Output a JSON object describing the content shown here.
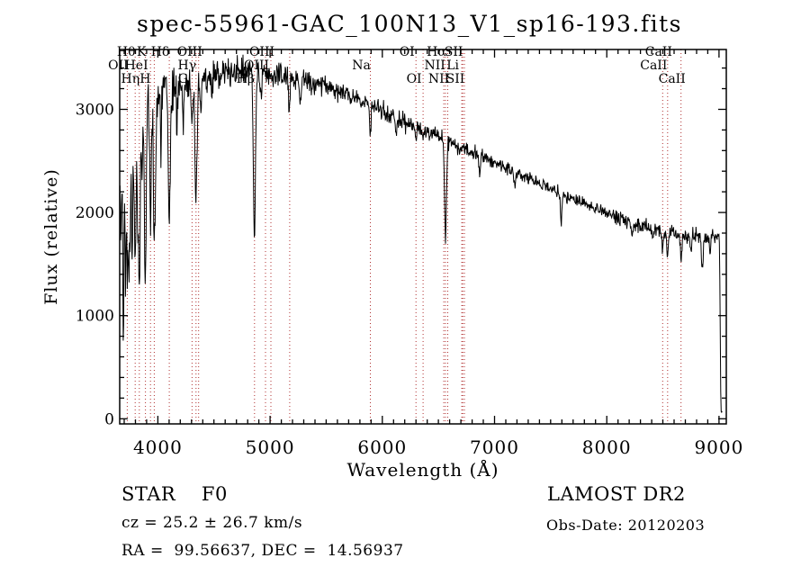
{
  "title": "spec-55961-GAC_100N13_V1_sp16-193.fits",
  "footer": {
    "class_label": "STAR    F0",
    "cz": "cz = 25.2 ± 26.7 km/s",
    "ra_dec": "RA =  99.56637, DEC =  14.56937",
    "survey": "LAMOST DR2",
    "obs_date": "Obs-Date: 20120203"
  },
  "chart_data": {
    "type": "line",
    "title": "spec-55961-GAC_100N13_V1_sp16-193.fits",
    "xlabel": "Wavelength (Å)",
    "ylabel": "Flux (relative)",
    "xlim": [
      3660,
      9065
    ],
    "ylim": [
      -50,
      3580
    ],
    "x_major_ticks": [
      4000,
      5000,
      6000,
      7000,
      8000,
      9000
    ],
    "x_minor_step": 100,
    "y_major_ticks": [
      0,
      1000,
      2000,
      3000
    ],
    "y_minor_step": 200,
    "grid": false,
    "line_color": "#000000",
    "marker_line_color": "#b03030",
    "spectral_lines": [
      {
        "wavelength": 3727,
        "label": "OII",
        "row": 2
      },
      {
        "wavelength": 3798,
        "label": "Hθ",
        "row": 1
      },
      {
        "wavelength": 3835,
        "label": "Hη",
        "row": 3
      },
      {
        "wavelength": 3889,
        "label": "HeI",
        "row": 2
      },
      {
        "wavelength": 3934,
        "label": "K",
        "row": 1
      },
      {
        "wavelength": 3968,
        "label": "H",
        "row": 3
      },
      {
        "wavelength": 4102,
        "label": "Hδ",
        "row": 1
      },
      {
        "wavelength": 4305,
        "label": "G",
        "row": 3
      },
      {
        "wavelength": 4340,
        "label": "Hγ",
        "row": 2
      },
      {
        "wavelength": 4363,
        "label": "OIII",
        "row": 1
      },
      {
        "wavelength": 4861,
        "label": "Hβ",
        "row": 3
      },
      {
        "wavelength": 4959,
        "label": "OIII",
        "row": 2
      },
      {
        "wavelength": 5007,
        "label": "OIII",
        "row": 1
      },
      {
        "wavelength": 5175,
        "label": "",
        "row": 3
      },
      {
        "wavelength": 5893,
        "label": "Na",
        "row": 2
      },
      {
        "wavelength": 6300,
        "label": "OI",
        "row": 1
      },
      {
        "wavelength": 6363,
        "label": "OI",
        "row": 3
      },
      {
        "wavelength": 6548,
        "label": "NII",
        "row": 2
      },
      {
        "wavelength": 6563,
        "label": "Hα",
        "row": 1
      },
      {
        "wavelength": 6583,
        "label": "NII",
        "row": 3
      },
      {
        "wavelength": 6708,
        "label": "Li",
        "row": 2
      },
      {
        "wavelength": 6716,
        "label": "SII",
        "row": 1
      },
      {
        "wavelength": 6731,
        "label": "SII",
        "row": 3
      },
      {
        "wavelength": 8498,
        "label": "CaII",
        "row": 2
      },
      {
        "wavelength": 8542,
        "label": "CaII",
        "row": 1
      },
      {
        "wavelength": 8662,
        "label": "CaII",
        "row": 3
      }
    ],
    "continuum": [
      [
        3663,
        2400
      ],
      [
        3700,
        2850
      ],
      [
        3760,
        3000
      ],
      [
        3820,
        3060
      ],
      [
        3900,
        3120
      ],
      [
        4000,
        3160
      ],
      [
        4150,
        3220
      ],
      [
        4300,
        3260
      ],
      [
        4450,
        3310
      ],
      [
        4600,
        3360
      ],
      [
        4750,
        3370
      ],
      [
        4900,
        3340
      ],
      [
        5050,
        3320
      ],
      [
        5200,
        3300
      ],
      [
        5350,
        3270
      ],
      [
        5500,
        3230
      ],
      [
        5650,
        3160
      ],
      [
        5800,
        3090
      ],
      [
        5950,
        3020
      ],
      [
        6100,
        2930
      ],
      [
        6250,
        2850
      ],
      [
        6400,
        2780
      ],
      [
        6550,
        2700
      ],
      [
        6700,
        2630
      ],
      [
        6850,
        2560
      ],
      [
        7000,
        2490
      ],
      [
        7150,
        2410
      ],
      [
        7300,
        2330
      ],
      [
        7450,
        2250
      ],
      [
        7600,
        2180
      ],
      [
        7750,
        2110
      ],
      [
        7900,
        2040
      ],
      [
        8050,
        1970
      ],
      [
        8200,
        1910
      ],
      [
        8350,
        1850
      ],
      [
        8500,
        1810
      ],
      [
        8650,
        1790
      ],
      [
        8800,
        1780
      ],
      [
        8950,
        1765
      ],
      [
        9000,
        1760
      ],
      [
        9004,
        1720
      ],
      [
        9010,
        1000
      ],
      [
        9014,
        300
      ],
      [
        9018,
        80
      ],
      [
        9026,
        60
      ],
      [
        9030,
        90
      ]
    ],
    "absorption_lines": [
      [
        3670,
        800,
        5
      ],
      [
        3692,
        1700,
        6
      ],
      [
        3712,
        1400,
        6
      ],
      [
        3727,
        1150,
        5
      ],
      [
        3737,
        1250,
        5
      ],
      [
        3750,
        1400,
        6
      ],
      [
        3771,
        1500,
        7
      ],
      [
        3798,
        1550,
        8
      ],
      [
        3820,
        900,
        5
      ],
      [
        3835,
        1750,
        8
      ],
      [
        3860,
        750,
        5
      ],
      [
        3889,
        1800,
        8
      ],
      [
        3934,
        1350,
        7
      ],
      [
        3970,
        1450,
        9
      ],
      [
        4026,
        500,
        5
      ],
      [
        4102,
        1350,
        9
      ],
      [
        4172,
        350,
        5
      ],
      [
        4226,
        420,
        5
      ],
      [
        4305,
        380,
        7
      ],
      [
        4340,
        1300,
        9
      ],
      [
        4383,
        400,
        5
      ],
      [
        4481,
        300,
        5
      ],
      [
        4861,
        1600,
        9
      ],
      [
        4920,
        280,
        5
      ],
      [
        5170,
        280,
        6
      ],
      [
        5270,
        220,
        6
      ],
      [
        5893,
        320,
        6
      ],
      [
        6122,
        180,
        5
      ],
      [
        6300,
        160,
        5
      ],
      [
        6563,
        950,
        8
      ],
      [
        6868,
        190,
        6
      ],
      [
        7180,
        160,
        8
      ],
      [
        7594,
        290,
        7
      ],
      [
        8226,
        160,
        6
      ],
      [
        8413,
        130,
        5
      ],
      [
        8498,
        210,
        5
      ],
      [
        8542,
        270,
        6
      ],
      [
        8662,
        270,
        6
      ],
      [
        8750,
        170,
        6
      ],
      [
        8850,
        290,
        9
      ],
      [
        8920,
        190,
        6
      ]
    ],
    "noise_sigma": [
      [
        3663,
        200
      ],
      [
        3750,
        150
      ],
      [
        3850,
        120
      ],
      [
        4000,
        110
      ],
      [
        4300,
        90
      ],
      [
        4600,
        75
      ],
      [
        5000,
        60
      ],
      [
        5400,
        50
      ],
      [
        5800,
        45
      ],
      [
        6200,
        42
      ],
      [
        6600,
        38
      ],
      [
        7000,
        34
      ],
      [
        7400,
        32
      ],
      [
        7800,
        32
      ],
      [
        8200,
        34
      ],
      [
        8600,
        42
      ],
      [
        8900,
        36
      ],
      [
        9000,
        28
      ],
      [
        9010,
        12
      ],
      [
        9030,
        8
      ]
    ],
    "noise_seed": 42,
    "sample_step": 4,
    "sample_end": 9030
  }
}
